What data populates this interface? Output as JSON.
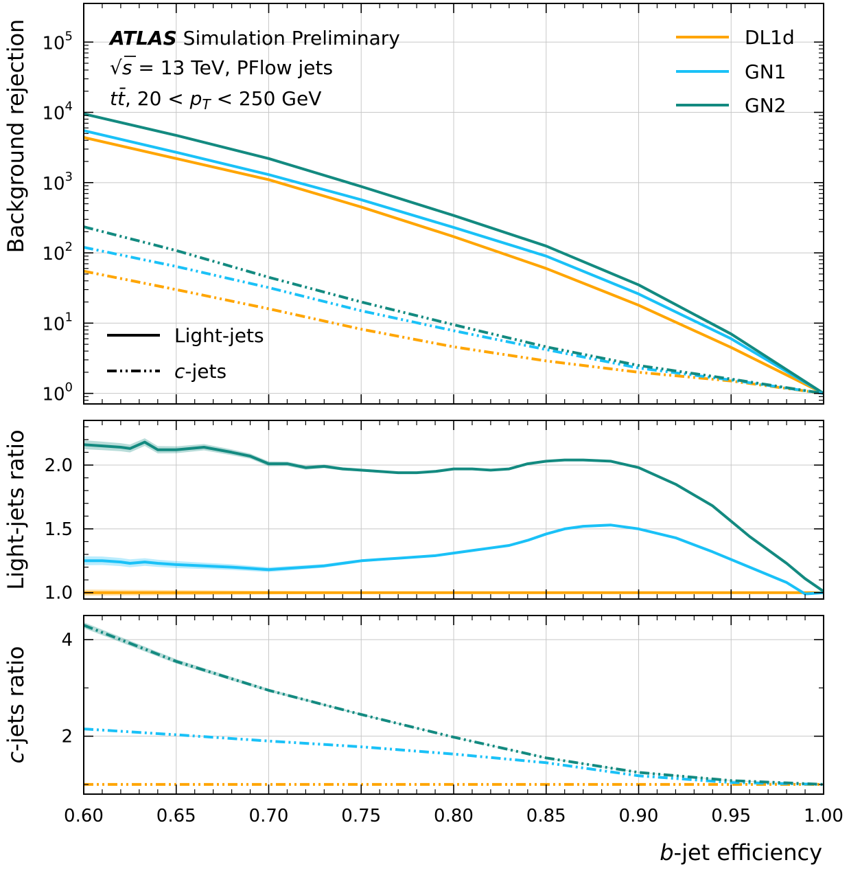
{
  "annotations": {
    "line1_bold": "ATLAS",
    "line1_rest": " Simulation Preliminary",
    "line2_sqrt": "√",
    "line2_s": "s",
    "line2_rest": " = 13 TeV, PFlow jets",
    "line3_tt": "tt̄",
    "line3_a": ", 20 < ",
    "line3_p": "p",
    "line3_sub": "T",
    "line3_b": " < 250 GeV"
  },
  "legend_taggers": [
    {
      "name": "DL1d",
      "color": "#FFA500"
    },
    {
      "name": "GN1",
      "color": "#1AC1F7"
    },
    {
      "name": "GN2",
      "color": "#138A80"
    }
  ],
  "legend_styles": {
    "light": "Light-jets",
    "c_italic": "c",
    "c_rest": "-jets"
  },
  "x_axis": {
    "label_italic": "b",
    "label_rest": "-jet efficiency",
    "ticks": [
      "0.60",
      "0.65",
      "0.70",
      "0.75",
      "0.80",
      "0.85",
      "0.90",
      "0.95",
      "1.00"
    ]
  },
  "chart_data": [
    {
      "type": "line",
      "scale": "log",
      "ylabel": "Background rejection",
      "xlim": [
        0.6,
        1.0
      ],
      "ylim_log10": [
        -0.15,
        5.55
      ],
      "yticks": [
        {
          "base": "10",
          "exp": "0"
        },
        {
          "base": "10",
          "exp": "1"
        },
        {
          "base": "10",
          "exp": "2"
        },
        {
          "base": "10",
          "exp": "3"
        },
        {
          "base": "10",
          "exp": "4"
        },
        {
          "base": "10",
          "exp": "5"
        }
      ],
      "x": [
        0.6,
        0.65,
        0.7,
        0.75,
        0.8,
        0.85,
        0.9,
        0.95,
        1.0
      ],
      "series": [
        {
          "name": "DL1d",
          "category": "Light-jets",
          "values": [
            4400,
            2200,
            1100,
            450,
            170,
            60,
            18,
            4.5,
            1.0
          ]
        },
        {
          "name": "GN1",
          "category": "Light-jets",
          "values": [
            5500,
            2700,
            1300,
            570,
            230,
            90,
            26,
            6.0,
            1.0
          ]
        },
        {
          "name": "GN2",
          "category": "Light-jets",
          "values": [
            9500,
            4700,
            2200,
            880,
            340,
            125,
            35,
            7.0,
            1.0
          ]
        },
        {
          "name": "DL1d",
          "category": "c-jets",
          "values": [
            55,
            30,
            16,
            8.2,
            4.6,
            2.9,
            2.0,
            1.5,
            1.0
          ]
        },
        {
          "name": "GN1",
          "category": "c-jets",
          "values": [
            120,
            64,
            32,
            15,
            7.8,
            4.2,
            2.3,
            1.55,
            1.0
          ]
        },
        {
          "name": "GN2",
          "category": "c-jets",
          "values": [
            235,
            108,
            45,
            20,
            9.5,
            4.6,
            2.5,
            1.6,
            1.0
          ]
        }
      ]
    },
    {
      "type": "line",
      "ylabel": "Light-jets ratio",
      "xlim": [
        0.6,
        1.0
      ],
      "ylim": [
        0.95,
        2.35
      ],
      "yticks": [
        "1.0",
        "1.5",
        "2.0"
      ],
      "x": [
        0.6,
        0.61,
        0.62,
        0.625,
        0.633,
        0.64,
        0.65,
        0.665,
        0.68,
        0.69,
        0.7,
        0.71,
        0.72,
        0.73,
        0.74,
        0.75,
        0.76,
        0.77,
        0.78,
        0.79,
        0.8,
        0.81,
        0.82,
        0.83,
        0.84,
        0.85,
        0.86,
        0.87,
        0.885,
        0.9,
        0.92,
        0.94,
        0.96,
        0.98,
        0.99,
        1.0
      ],
      "series": [
        {
          "name": "DL1d",
          "values": [
            1.0,
            1.0,
            1.0,
            1.0,
            1.0,
            1.0,
            1.0,
            1.0,
            1.0,
            1.0,
            1.0,
            1.0,
            1.0,
            1.0,
            1.0,
            1.0,
            1.0,
            1.0,
            1.0,
            1.0,
            1.0,
            1.0,
            1.0,
            1.0,
            1.0,
            1.0,
            1.0,
            1.0,
            1.0,
            1.0,
            1.0,
            1.0,
            1.0,
            1.0,
            1.0,
            1.0
          ]
        },
        {
          "name": "GN1",
          "values": [
            1.25,
            1.25,
            1.24,
            1.23,
            1.24,
            1.23,
            1.22,
            1.21,
            1.2,
            1.19,
            1.18,
            1.19,
            1.2,
            1.21,
            1.23,
            1.25,
            1.26,
            1.27,
            1.28,
            1.29,
            1.31,
            1.33,
            1.35,
            1.37,
            1.41,
            1.46,
            1.5,
            1.52,
            1.53,
            1.5,
            1.43,
            1.32,
            1.2,
            1.08,
            0.99,
            1.0
          ]
        },
        {
          "name": "GN2",
          "values": [
            2.16,
            2.15,
            2.14,
            2.13,
            2.18,
            2.12,
            2.12,
            2.14,
            2.1,
            2.07,
            2.01,
            2.01,
            1.98,
            1.99,
            1.97,
            1.96,
            1.95,
            1.94,
            1.94,
            1.95,
            1.97,
            1.97,
            1.96,
            1.97,
            2.01,
            2.03,
            2.04,
            2.04,
            2.03,
            1.98,
            1.85,
            1.68,
            1.44,
            1.23,
            1.11,
            1.01
          ]
        }
      ]
    },
    {
      "type": "line",
      "ylabel_italic": "c",
      "ylabel_rest": "-jets ratio",
      "xlim": [
        0.6,
        1.0
      ],
      "ylim": [
        0.8,
        4.5
      ],
      "yticks": [
        "2",
        "4"
      ],
      "x": [
        0.6,
        0.65,
        0.7,
        0.75,
        0.8,
        0.85,
        0.9,
        0.95,
        1.0
      ],
      "series": [
        {
          "name": "DL1d",
          "values": [
            1.0,
            1.0,
            1.0,
            1.0,
            1.0,
            1.0,
            1.0,
            1.0,
            1.0
          ]
        },
        {
          "name": "GN1",
          "values": [
            2.15,
            2.03,
            1.9,
            1.78,
            1.63,
            1.45,
            1.18,
            1.04,
            1.0
          ]
        },
        {
          "name": "GN2",
          "values": [
            4.3,
            3.55,
            2.95,
            2.45,
            1.98,
            1.55,
            1.25,
            1.08,
            1.0
          ]
        }
      ]
    }
  ]
}
